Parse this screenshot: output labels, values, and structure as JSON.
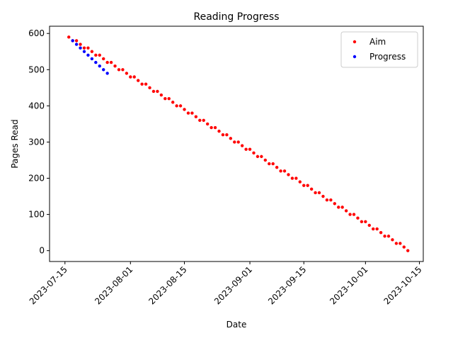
{
  "chart_data": {
    "type": "scatter",
    "title": "Reading Progress",
    "x_label": "Date",
    "y_label": "Pages Read",
    "series": [
      {
        "name": "Aim",
        "color": "#ff0000",
        "x": [
          "2023-07-16",
          "2023-07-17",
          "2023-07-18",
          "2023-07-19",
          "2023-07-20",
          "2023-07-21",
          "2023-07-22",
          "2023-07-23",
          "2023-07-24",
          "2023-07-25",
          "2023-07-26",
          "2023-07-27",
          "2023-07-28",
          "2023-07-29",
          "2023-07-30",
          "2023-07-31",
          "2023-08-01",
          "2023-08-02",
          "2023-08-03",
          "2023-08-04",
          "2023-08-05",
          "2023-08-06",
          "2023-08-07",
          "2023-08-08",
          "2023-08-09",
          "2023-08-10",
          "2023-08-11",
          "2023-08-12",
          "2023-08-13",
          "2023-08-14",
          "2023-08-15",
          "2023-08-16",
          "2023-08-17",
          "2023-08-18",
          "2023-08-19",
          "2023-08-20",
          "2023-08-21",
          "2023-08-22",
          "2023-08-23",
          "2023-08-24",
          "2023-08-25",
          "2023-08-26",
          "2023-08-27",
          "2023-08-28",
          "2023-08-29",
          "2023-08-30",
          "2023-08-31",
          "2023-09-01",
          "2023-09-02",
          "2023-09-03",
          "2023-09-04",
          "2023-09-05",
          "2023-09-06",
          "2023-09-07",
          "2023-09-08",
          "2023-09-09",
          "2023-09-10",
          "2023-09-11",
          "2023-09-12",
          "2023-09-13",
          "2023-09-14",
          "2023-09-15",
          "2023-09-16",
          "2023-09-17",
          "2023-09-18",
          "2023-09-19",
          "2023-09-20",
          "2023-09-21",
          "2023-09-22",
          "2023-09-23",
          "2023-09-24",
          "2023-09-25",
          "2023-09-26",
          "2023-09-27",
          "2023-09-28",
          "2023-09-29",
          "2023-09-30",
          "2023-10-01",
          "2023-10-02",
          "2023-10-03",
          "2023-10-04",
          "2023-10-05",
          "2023-10-06",
          "2023-10-07",
          "2023-10-08",
          "2023-10-09",
          "2023-10-10",
          "2023-10-11",
          "2023-10-12"
        ],
        "values": [
          590,
          580,
          580,
          570,
          560,
          560,
          550,
          540,
          540,
          530,
          520,
          520,
          510,
          500,
          500,
          490,
          480,
          480,
          470,
          460,
          460,
          450,
          440,
          440,
          430,
          420,
          420,
          410,
          400,
          400,
          390,
          380,
          380,
          370,
          360,
          360,
          350,
          340,
          340,
          330,
          320,
          320,
          310,
          300,
          300,
          290,
          280,
          280,
          270,
          260,
          260,
          250,
          240,
          240,
          230,
          220,
          220,
          210,
          200,
          200,
          190,
          180,
          180,
          170,
          160,
          160,
          150,
          140,
          140,
          130,
          120,
          120,
          110,
          100,
          100,
          90,
          80,
          80,
          70,
          60,
          60,
          50,
          40,
          40,
          30,
          20,
          20,
          10,
          0
        ]
      },
      {
        "name": "Progress",
        "color": "#0000ff",
        "x": [
          "2023-07-17",
          "2023-07-18",
          "2023-07-19",
          "2023-07-20",
          "2023-07-21",
          "2023-07-22",
          "2023-07-23",
          "2023-07-24",
          "2023-07-25",
          "2023-07-26"
        ],
        "values": [
          580,
          570,
          560,
          550,
          540,
          530,
          520,
          510,
          500,
          490
        ]
      }
    ],
    "xlim": [
      "2023-07-11",
      "2023-10-16"
    ],
    "xticks": [
      "2023-07-15",
      "2023-08-01",
      "2023-08-15",
      "2023-09-01",
      "2023-09-15",
      "2023-10-01",
      "2023-10-15"
    ],
    "ylim": [
      -30,
      620
    ],
    "yticks": [
      0,
      100,
      200,
      300,
      400,
      500,
      600
    ],
    "legend": "upper right"
  }
}
